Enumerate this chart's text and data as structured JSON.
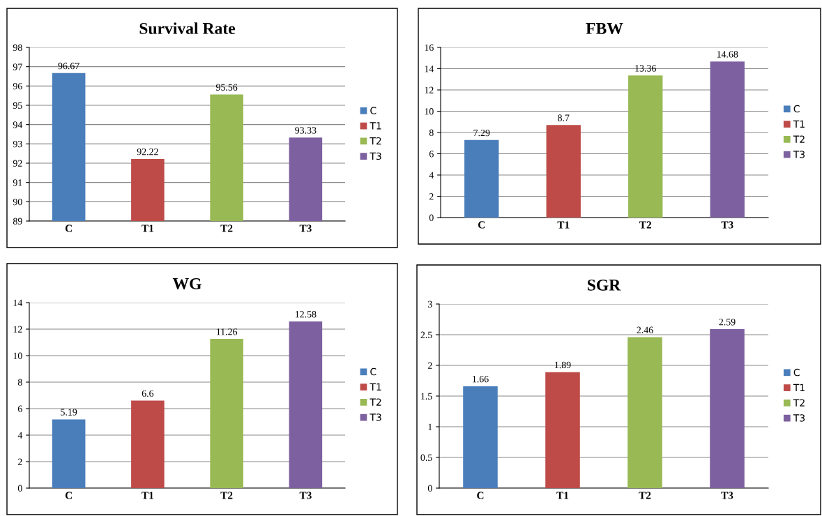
{
  "chart_data": [
    {
      "type": "bar",
      "title": "Survival Rate",
      "categories": [
        "C",
        "T1",
        "T2",
        "T3"
      ],
      "series": [
        {
          "name": "C",
          "color": "#4a7ebb",
          "values": [
            96.67,
            null,
            null,
            null
          ]
        },
        {
          "name": "T1",
          "color": "#be4b48",
          "values": [
            null,
            92.22,
            null,
            null
          ]
        },
        {
          "name": "T2",
          "color": "#98b954",
          "values": [
            null,
            null,
            95.56,
            null
          ]
        },
        {
          "name": "T3",
          "color": "#7d60a0",
          "values": [
            null,
            null,
            null,
            93.33
          ]
        }
      ],
      "ylim": [
        89,
        98
      ],
      "yticks": [
        89,
        90,
        91,
        92,
        93,
        94,
        95,
        96,
        97,
        98
      ],
      "grid": "y",
      "legend": "right",
      "data_labels": true
    },
    {
      "type": "bar",
      "title": "FBW",
      "categories": [
        "C",
        "T1",
        "T2",
        "T3"
      ],
      "series": [
        {
          "name": "C",
          "color": "#4a7ebb",
          "values": [
            7.29,
            null,
            null,
            null
          ]
        },
        {
          "name": "T1",
          "color": "#be4b48",
          "values": [
            null,
            8.7,
            null,
            null
          ]
        },
        {
          "name": "T2",
          "color": "#98b954",
          "values": [
            null,
            null,
            13.36,
            null
          ]
        },
        {
          "name": "T3",
          "color": "#7d60a0",
          "values": [
            null,
            null,
            null,
            14.68
          ]
        }
      ],
      "ylim": [
        0,
        16
      ],
      "yticks": [
        0,
        2,
        4,
        6,
        8,
        10,
        12,
        14,
        16
      ],
      "grid": "y",
      "legend": "right",
      "data_labels": true
    },
    {
      "type": "bar",
      "title": "WG",
      "categories": [
        "C",
        "T1",
        "T2",
        "T3"
      ],
      "series": [
        {
          "name": "C",
          "color": "#4a7ebb",
          "values": [
            5.19,
            null,
            null,
            null
          ]
        },
        {
          "name": "T1",
          "color": "#be4b48",
          "values": [
            null,
            6.6,
            null,
            null
          ]
        },
        {
          "name": "T2",
          "color": "#98b954",
          "values": [
            null,
            null,
            11.26,
            null
          ]
        },
        {
          "name": "T3",
          "color": "#7d60a0",
          "values": [
            null,
            null,
            null,
            12.58
          ]
        }
      ],
      "ylim": [
        0,
        14
      ],
      "yticks": [
        0,
        2,
        4,
        6,
        8,
        10,
        12,
        14
      ],
      "grid": "y",
      "legend": "right",
      "data_labels": true
    },
    {
      "type": "bar",
      "title": "SGR",
      "categories": [
        "C",
        "T1",
        "T2",
        "T3"
      ],
      "series": [
        {
          "name": "C",
          "color": "#4a7ebb",
          "values": [
            1.66,
            null,
            null,
            null
          ]
        },
        {
          "name": "T1",
          "color": "#be4b48",
          "values": [
            null,
            1.89,
            null,
            null
          ]
        },
        {
          "name": "T2",
          "color": "#98b954",
          "values": [
            null,
            null,
            2.46,
            null
          ]
        },
        {
          "name": "T3",
          "color": "#7d60a0",
          "values": [
            null,
            null,
            null,
            2.59
          ]
        }
      ],
      "ylim": [
        0,
        3
      ],
      "yticks": [
        0,
        0.5,
        1,
        1.5,
        2,
        2.5,
        3
      ],
      "grid": "y",
      "legend": "right",
      "data_labels": true
    }
  ]
}
